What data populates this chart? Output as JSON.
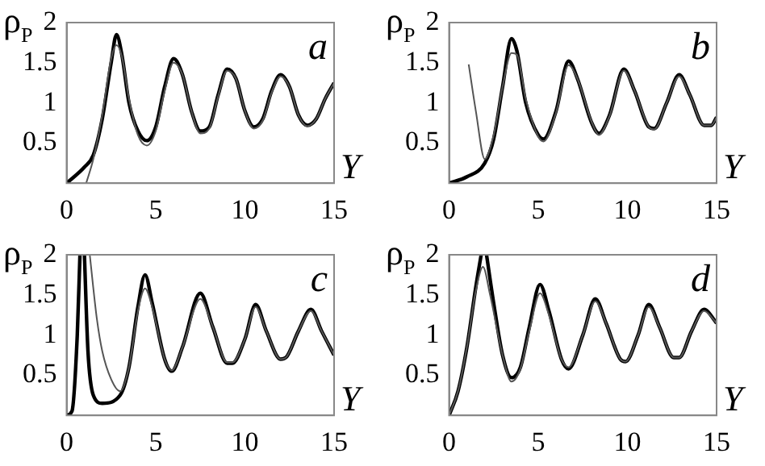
{
  "chart_data": [
    {
      "type": "line",
      "ylabel": "ρ$_{P}$",
      "xlabel": "Y",
      "annotations": [
        "a"
      ],
      "xlim": [
        0,
        15
      ],
      "ylim": [
        0,
        2
      ],
      "xticks": [
        0,
        5,
        10,
        15
      ],
      "yticks": [
        0.5,
        1,
        1.5,
        2
      ],
      "series": [
        {
          "color": "#000000",
          "x": [
            0,
            1,
            1.5,
            2,
            2.5,
            2.8,
            3.1,
            3.5,
            4,
            4.5,
            5,
            5.5,
            6,
            6.5,
            7,
            7.5,
            8,
            8.5,
            9,
            9.5,
            10,
            10.5,
            11,
            11.5,
            12,
            12.5,
            13,
            13.5,
            14,
            14.5,
            15
          ],
          "values": [
            0,
            0.2,
            0.35,
            0.8,
            1.5,
            1.85,
            1.6,
            1.0,
            0.65,
            0.53,
            0.7,
            1.2,
            1.55,
            1.35,
            0.9,
            0.65,
            0.7,
            1.1,
            1.42,
            1.3,
            0.9,
            0.7,
            0.8,
            1.15,
            1.35,
            1.2,
            0.85,
            0.72,
            0.8,
            1.05,
            1.25
          ]
        },
        {
          "color": "#555555",
          "x": [
            1.1,
            1.5,
            2,
            2.5,
            2.8,
            3.1,
            3.5,
            4,
            4.5,
            5,
            5.5,
            6,
            6.5,
            7,
            7.5,
            8,
            8.5,
            9,
            9.5,
            10,
            10.5,
            11,
            11.5,
            12,
            12.5,
            13,
            13.5,
            14,
            14.5,
            15
          ],
          "values": [
            0,
            0.3,
            0.85,
            1.55,
            1.72,
            1.58,
            1.05,
            0.6,
            0.47,
            0.65,
            1.15,
            1.5,
            1.35,
            0.9,
            0.62,
            0.68,
            1.08,
            1.4,
            1.3,
            0.9,
            0.68,
            0.78,
            1.13,
            1.33,
            1.2,
            0.85,
            0.71,
            0.8,
            1.05,
            1.25
          ]
        }
      ]
    },
    {
      "type": "line",
      "ylabel": "ρ$_{P}$",
      "xlabel": "Y",
      "annotations": [
        "b"
      ],
      "xlim": [
        0,
        15
      ],
      "ylim": [
        0,
        2
      ],
      "xticks": [
        0,
        5,
        10,
        15
      ],
      "yticks": [
        0.5,
        1,
        1.5,
        2
      ],
      "series": [
        {
          "color": "#000000",
          "x": [
            0,
            1,
            2,
            2.5,
            3,
            3.5,
            3.8,
            4.3,
            5,
            5.3,
            6,
            6.7,
            7.2,
            8,
            8.4,
            9,
            9.8,
            10.4,
            11.2,
            11.5,
            12.2,
            12.9,
            13.5,
            14.3,
            14.7,
            15
          ],
          "values": [
            0,
            0.08,
            0.25,
            0.55,
            1.2,
            1.8,
            1.65,
            1.0,
            0.6,
            0.55,
            0.9,
            1.52,
            1.3,
            0.75,
            0.62,
            0.85,
            1.42,
            1.15,
            0.7,
            0.68,
            1.0,
            1.35,
            1.1,
            0.72,
            0.72,
            0.82
          ]
        },
        {
          "color": "#555555",
          "x": [
            1.1,
            1.5,
            2,
            2.5,
            3,
            3.5,
            3.8,
            4.3,
            5,
            5.3,
            6,
            6.7,
            7.2,
            8,
            8.4,
            9,
            9.8,
            10.4,
            11.2,
            11.5,
            12.2,
            12.9,
            13.5,
            14.3,
            14.7,
            15
          ],
          "values": [
            1.48,
            0.9,
            0.3,
            0.6,
            1.2,
            1.62,
            1.6,
            1.05,
            0.58,
            0.52,
            0.88,
            1.47,
            1.3,
            0.76,
            0.6,
            0.84,
            1.4,
            1.15,
            0.7,
            0.67,
            1.0,
            1.33,
            1.1,
            0.72,
            0.72,
            0.82
          ]
        }
      ]
    },
    {
      "type": "line",
      "ylabel": "ρ$_{P}$",
      "xlabel": "Y",
      "annotations": [
        "c"
      ],
      "xlim": [
        0,
        15
      ],
      "ylim": [
        0,
        2
      ],
      "xticks": [
        0,
        5,
        10,
        15
      ],
      "yticks": [
        0.5,
        1,
        1.5,
        2
      ],
      "series": [
        {
          "color": "#000000",
          "x": [
            0,
            0.3,
            0.6,
            0.75,
            0.85,
            1.0,
            1.2,
            1.5,
            2,
            3,
            3.5,
            4,
            4.4,
            4.8,
            5.5,
            5.9,
            6.5,
            7.5,
            8.2,
            9,
            9.3,
            10,
            10.6,
            11.2,
            12,
            12.3,
            13,
            13.7,
            14.3,
            15
          ],
          "values": [
            0,
            0.05,
            1.0,
            2,
            null,
            2,
            0.8,
            0.25,
            0.15,
            0.25,
            0.6,
            1.35,
            1.75,
            1.4,
            0.7,
            0.55,
            0.85,
            1.52,
            1.1,
            0.65,
            0.65,
            0.95,
            1.38,
            1.05,
            0.7,
            0.72,
            1.05,
            1.32,
            1.05,
            0.75
          ]
        },
        {
          "color": "#555555",
          "x": [
            1.3,
            1.7,
            2,
            2.5,
            3,
            3.5,
            4,
            4.4,
            4.8,
            5.5,
            5.9,
            6.5,
            7.5,
            8.2,
            9,
            9.3,
            10,
            10.6,
            11.2,
            12,
            12.3,
            13,
            13.7,
            14.3,
            15
          ],
          "values": [
            2,
            1.2,
            0.8,
            0.45,
            0.3,
            0.6,
            1.3,
            1.58,
            1.35,
            0.7,
            0.56,
            0.85,
            1.45,
            1.1,
            0.66,
            0.66,
            0.95,
            1.35,
            1.05,
            0.7,
            0.72,
            1.05,
            1.3,
            1.05,
            0.75
          ]
        }
      ]
    },
    {
      "type": "line",
      "ylabel": "ρ$_{P}$",
      "xlabel": "Y",
      "annotations": [
        "d"
      ],
      "xlim": [
        0,
        15
      ],
      "ylim": [
        0,
        2
      ],
      "xticks": [
        0,
        5,
        10,
        15
      ],
      "yticks": [
        0.5,
        1,
        1.5,
        2
      ],
      "series": [
        {
          "color": "#000000",
          "x": [
            0,
            0.5,
            1,
            1.5,
            1.8,
            1.95,
            2.1,
            2.5,
            3,
            3.5,
            4,
            4.5,
            5.1,
            5.6,
            6.3,
            6.7,
            7.5,
            8.2,
            8.8,
            9.6,
            9.9,
            10.6,
            11.2,
            11.8,
            12.6,
            12.9,
            13.6,
            14.3,
            15
          ],
          "values": [
            0,
            0.3,
            0.85,
            1.6,
            2,
            null,
            2,
            1.4,
            0.75,
            0.47,
            0.6,
            1.1,
            1.63,
            1.3,
            0.7,
            0.58,
            1.0,
            1.45,
            1.15,
            0.7,
            0.67,
            1.0,
            1.38,
            1.1,
            0.72,
            0.72,
            1.05,
            1.32,
            1.15
          ]
        },
        {
          "color": "#555555",
          "x": [
            0,
            0.5,
            1,
            1.5,
            1.9,
            2.3,
            3,
            3.5,
            4,
            4.5,
            5.1,
            5.6,
            6.3,
            6.7,
            7.5,
            8.2,
            8.8,
            9.6,
            9.9,
            10.6,
            11.2,
            11.8,
            12.6,
            12.9,
            13.6,
            14.3,
            15
          ],
          "values": [
            0,
            0.3,
            0.85,
            1.55,
            1.85,
            1.5,
            0.75,
            0.42,
            0.58,
            1.05,
            1.52,
            1.25,
            0.7,
            0.6,
            1.0,
            1.42,
            1.15,
            0.7,
            0.67,
            1.0,
            1.35,
            1.1,
            0.72,
            0.72,
            1.05,
            1.3,
            1.15
          ]
        }
      ]
    }
  ]
}
